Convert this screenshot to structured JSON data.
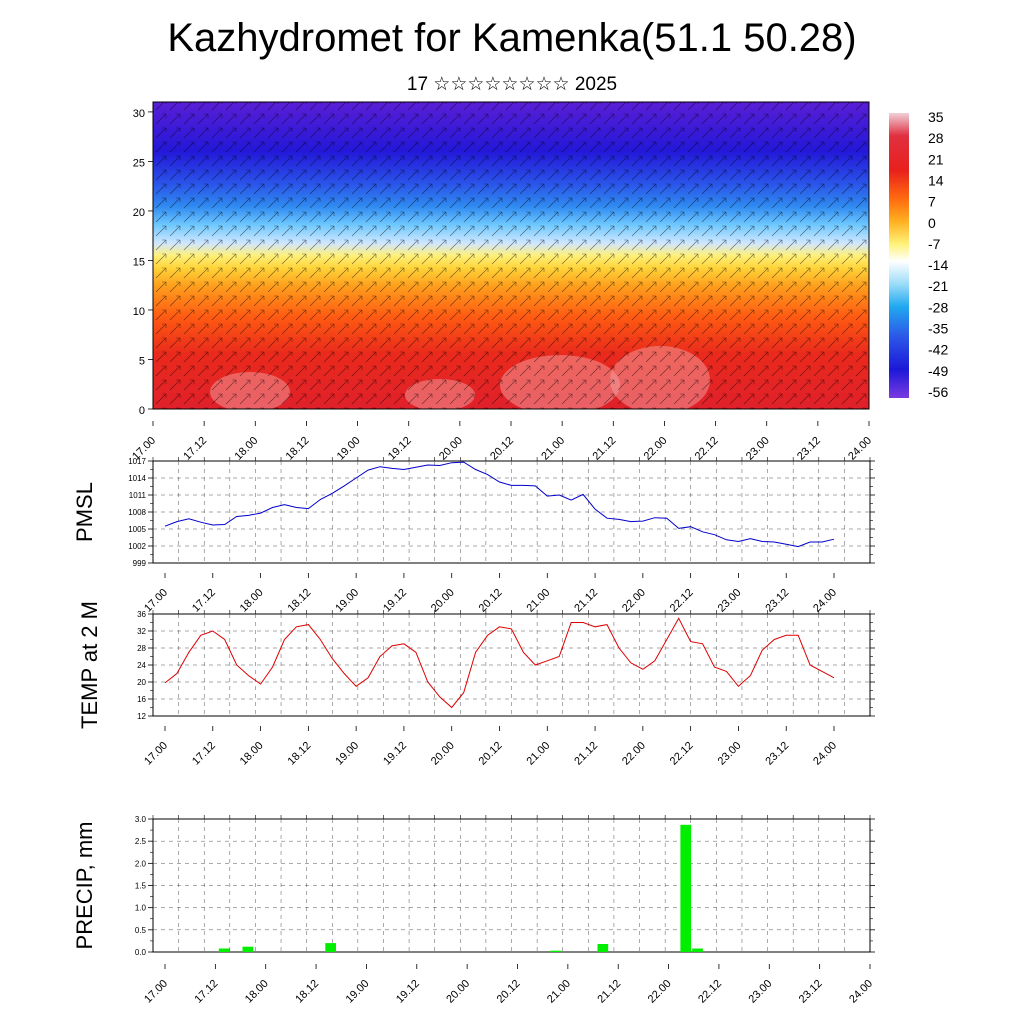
{
  "title": "Kazhydromet for Kamenka(51.1 50.28)",
  "subtitle": "17 ☆☆☆☆☆☆☆☆ 2025",
  "x_tick_labels": [
    "17.00",
    "17.12",
    "18.00",
    "18.12",
    "19.00",
    "19.12",
    "20.00",
    "20.12",
    "21.00",
    "21.12",
    "22.00",
    "22.12",
    "23.00",
    "23.12",
    "24.00"
  ],
  "chart_data": [
    {
      "type": "heatmap",
      "ylim": [
        0,
        31
      ],
      "yticks": [
        "0",
        "5",
        "10",
        "15",
        "20",
        "25",
        "30"
      ],
      "colorbar": [
        "35",
        "28",
        "21",
        "14",
        "7",
        "0",
        "-7",
        "-14",
        "-21",
        "-28",
        "-35",
        "-42",
        "-49",
        "-56"
      ],
      "colors": {
        "high": "#e0202a",
        "mid": "#ffe25a",
        "low": "#5a1ed6"
      }
    },
    {
      "type": "line",
      "ylabel": "PMSL",
      "ylim": [
        999,
        1017
      ],
      "yticks": [
        "999",
        "1002",
        "1005",
        "1008",
        "1011",
        "1014",
        "1017"
      ],
      "color": "#0000cc",
      "values": [
        1005.5,
        1006.3,
        1006.8,
        1006.2,
        1005.7,
        1005.8,
        1007.2,
        1007.4,
        1007.8,
        1008.8,
        1009.3,
        1008.8,
        1008.6,
        1010.2,
        1011.3,
        1012.6,
        1014.0,
        1015.4,
        1016.0,
        1015.7,
        1015.5,
        1015.9,
        1016.3,
        1016.2,
        1016.7,
        1016.8,
        1015.5,
        1014.6,
        1013.3,
        1012.7,
        1012.7,
        1012.6,
        1010.8,
        1011.0,
        1010.1,
        1011.1,
        1008.5,
        1006.9,
        1006.7,
        1006.3,
        1006.4,
        1007.0,
        1006.9,
        1005.1,
        1005.4,
        1004.5,
        1004.0,
        1003.1,
        1002.8,
        1003.3,
        1002.8,
        1002.7,
        1002.3,
        1001.9,
        1002.7,
        1002.7,
        1003.2
      ]
    },
    {
      "type": "line",
      "ylabel": "TEMP at 2 M",
      "ylim": [
        12,
        36
      ],
      "yticks": [
        "12",
        "16",
        "20",
        "24",
        "28",
        "32",
        "36"
      ],
      "color": "#dd0000",
      "values": [
        19.8,
        22.0,
        27.0,
        31.0,
        32.0,
        30.0,
        24.0,
        21.5,
        19.5,
        23.5,
        30.0,
        33.0,
        33.5,
        30.0,
        25.5,
        22.0,
        19.0,
        21.0,
        26.0,
        28.5,
        29.0,
        27.0,
        20.0,
        16.5,
        14.0,
        17.5,
        27.0,
        31.0,
        33.0,
        32.5,
        27.0,
        24.0,
        25.0,
        26.0,
        34.0,
        34.0,
        33.0,
        33.5,
        28.0,
        24.5,
        23.0,
        25.0,
        30.0,
        35.0,
        29.5,
        29.0,
        23.5,
        22.5,
        19.0,
        21.5,
        27.5,
        30.0,
        31.0,
        31.0,
        24.0,
        22.5,
        21.0
      ]
    },
    {
      "type": "bar",
      "ylabel": "PRECIP, mm",
      "ylim": [
        0,
        3.0
      ],
      "yticks": [
        "0.0",
        "0.5",
        "1.0",
        "1.5",
        "2.0",
        "2.5",
        "3.0"
      ],
      "color": "#00ee00",
      "values": [
        0,
        0,
        0,
        0,
        0,
        0.08,
        0,
        0.12,
        0,
        0,
        0,
        0,
        0,
        0,
        0.2,
        0,
        0,
        0,
        0,
        0,
        0,
        0,
        0,
        0,
        0,
        0,
        0,
        0,
        0,
        0,
        0,
        0,
        0,
        0.03,
        0,
        0,
        0,
        0.18,
        0,
        0,
        0,
        0,
        0,
        0,
        2.87,
        0.08,
        0,
        0,
        0,
        0,
        0,
        0,
        0,
        0,
        0,
        0,
        0
      ]
    }
  ]
}
